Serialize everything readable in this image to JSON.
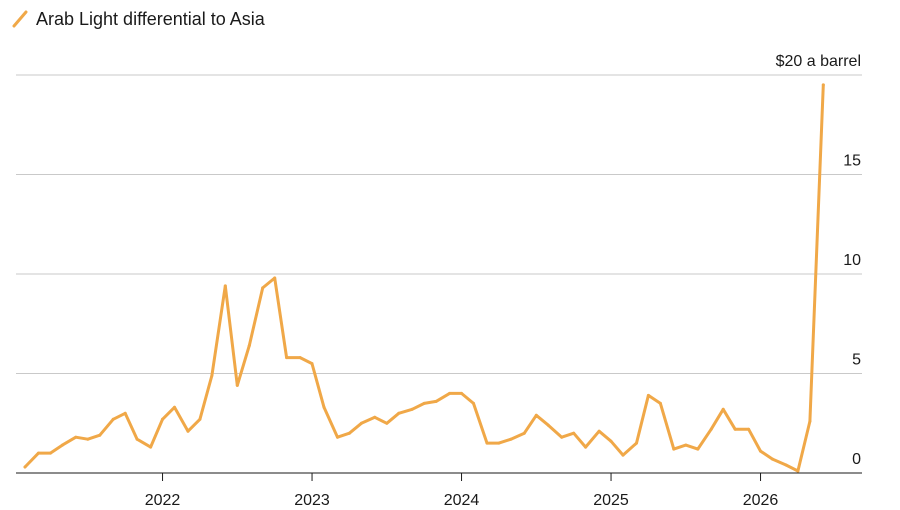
{
  "chart_data": {
    "type": "line",
    "title": "",
    "legend": [
      "Arab Light differential to Asia"
    ],
    "series": [
      {
        "name": "Arab Light differential to Asia",
        "color": "#F0A848",
        "x": [
          2021.08,
          2021.17,
          2021.25,
          2021.33,
          2021.42,
          2021.5,
          2021.58,
          2021.67,
          2021.75,
          2021.83,
          2021.92,
          2022.0,
          2022.08,
          2022.17,
          2022.25,
          2022.33,
          2022.42,
          2022.5,
          2022.58,
          2022.67,
          2022.75,
          2022.83,
          2022.92,
          2023.0,
          2023.08,
          2023.17,
          2023.25,
          2023.33,
          2023.42,
          2023.5,
          2023.58,
          2023.67,
          2023.75,
          2023.83,
          2023.92,
          2024.0,
          2024.08,
          2024.17,
          2024.25,
          2024.33,
          2024.42,
          2024.5,
          2024.58,
          2024.67,
          2024.75,
          2024.83,
          2024.92,
          2025.0,
          2025.08,
          2025.17,
          2025.25,
          2025.33,
          2025.42,
          2025.5,
          2025.58,
          2025.67,
          2025.75,
          2025.83,
          2025.92,
          2026.0,
          2026.08,
          2026.17,
          2026.25,
          2026.33,
          2026.42
        ],
        "values": [
          0.3,
          1.0,
          1.0,
          1.4,
          1.8,
          1.7,
          1.9,
          2.7,
          3.0,
          1.7,
          1.3,
          2.7,
          3.3,
          2.1,
          2.7,
          4.9,
          9.4,
          4.4,
          6.4,
          9.3,
          9.8,
          5.8,
          5.8,
          5.5,
          3.3,
          1.8,
          2.0,
          2.5,
          2.8,
          2.5,
          3.0,
          3.2,
          3.5,
          3.6,
          4.0,
          4.0,
          3.5,
          1.5,
          1.5,
          1.7,
          2.0,
          2.9,
          2.4,
          1.8,
          2.0,
          1.3,
          2.1,
          1.6,
          0.9,
          1.5,
          3.9,
          3.5,
          1.2,
          1.4,
          1.2,
          2.2,
          3.2,
          2.2,
          2.2,
          1.1,
          0.7,
          0.4,
          0.1,
          2.6,
          19.5
        ]
      }
    ],
    "x_ticks": [
      2022,
      2023,
      2024,
      2025,
      2026
    ],
    "x_tick_labels": [
      "2022",
      "2023",
      "2024",
      "2025",
      "2026"
    ],
    "xlim": [
      2021.08,
      2026.75
    ],
    "y_ticks": [
      0,
      5,
      10,
      15,
      20
    ],
    "y_tick_labels": [
      "0",
      "5",
      "10",
      "15",
      "$20 a barrel"
    ],
    "ylim": [
      0,
      20
    ],
    "xlabel": "",
    "ylabel": "",
    "grid": true,
    "legend_position": "top-left"
  }
}
